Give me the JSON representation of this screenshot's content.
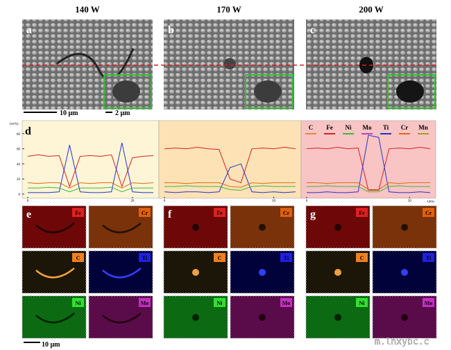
{
  "panel_titles": [
    "140 W",
    "170 W",
    "200 W"
  ],
  "sem_labels": [
    "a",
    "b",
    "c"
  ],
  "scale_bars": [
    "10 μm",
    "2 μm"
  ],
  "chart_data": {
    "type": "line",
    "label": "d",
    "y_label": "(wt%)",
    "x_label": "(nm)",
    "ylim": [
      0,
      90
    ],
    "yticks": [
      0,
      20,
      40,
      60,
      80
    ],
    "legend": [
      {
        "name": "C",
        "color": "#e08a3a"
      },
      {
        "name": "Fe",
        "color": "#d62020"
      },
      {
        "name": "Ni",
        "color": "#3cb83c"
      },
      {
        "name": "Mo",
        "color": "#c040c0"
      },
      {
        "name": "Ti",
        "color": "#2030d0"
      },
      {
        "name": "Cr",
        "color": "#e06a10"
      },
      {
        "name": "Mn",
        "color": "#a0a020"
      }
    ],
    "segments": [
      {
        "x": [
          0,
          2,
          4,
          6,
          8,
          10,
          12,
          14,
          16,
          18,
          20,
          22,
          24
        ],
        "xlim": [
          0,
          24
        ],
        "xticks": [
          0,
          20
        ],
        "series": [
          {
            "name": "Fe",
            "values": [
              50,
              52,
              50,
              51,
              10,
              50,
              51,
              50,
              52,
              10,
              48,
              50,
              51
            ]
          },
          {
            "name": "Ti",
            "values": [
              2,
              2,
              2,
              3,
              65,
              3,
              2,
              2,
              3,
              68,
              3,
              2,
              2
            ]
          },
          {
            "name": "Cr",
            "values": [
              15,
              14,
              15,
              15,
              8,
              15,
              14,
              15,
              15,
              8,
              15,
              14,
              15
            ]
          },
          {
            "name": "Ni",
            "values": [
              8,
              8,
              9,
              8,
              3,
              8,
              8,
              8,
              9,
              3,
              8,
              8,
              8
            ]
          }
        ]
      },
      {
        "x": [
          0,
          2,
          4,
          6,
          8,
          10,
          12,
          14,
          16,
          18,
          20,
          22,
          24
        ],
        "xlim": [
          0,
          24
        ],
        "xticks": [
          0,
          20
        ],
        "series": [
          {
            "name": "Fe",
            "values": [
              60,
              61,
              60,
              62,
              60,
              59,
              20,
              15,
              60,
              61,
              60,
              62,
              60
            ]
          },
          {
            "name": "Ti",
            "values": [
              3,
              2,
              3,
              3,
              2,
              3,
              35,
              40,
              3,
              2,
              3,
              2,
              3
            ]
          },
          {
            "name": "Cr",
            "values": [
              15,
              15,
              14,
              15,
              15,
              15,
              10,
              9,
              15,
              14,
              15,
              15,
              15
            ]
          },
          {
            "name": "Ni",
            "values": [
              10,
              10,
              11,
              10,
              10,
              10,
              6,
              5,
              10,
              11,
              10,
              10,
              10
            ]
          }
        ]
      },
      {
        "x": [
          0,
          2,
          4,
          6,
          8,
          10,
          12,
          14,
          16,
          18,
          20,
          22,
          24
        ],
        "xlim": [
          0,
          24
        ],
        "xticks": [
          0,
          20
        ],
        "series": [
          {
            "name": "Fe",
            "values": [
              60,
              61,
              60,
              62,
              60,
              61,
              5,
              5,
              60,
              61,
              60,
              62,
              60
            ]
          },
          {
            "name": "Ti",
            "values": [
              2,
              2,
              3,
              2,
              2,
              3,
              78,
              75,
              3,
              2,
              2,
              3,
              2
            ]
          },
          {
            "name": "Cr",
            "values": [
              15,
              15,
              14,
              15,
              15,
              15,
              6,
              6,
              15,
              14,
              15,
              15,
              15
            ]
          },
          {
            "name": "Ni",
            "values": [
              10,
              10,
              11,
              10,
              10,
              10,
              3,
              3,
              10,
              11,
              10,
              10,
              10
            ]
          }
        ]
      }
    ]
  },
  "maps": [
    {
      "label": "e",
      "elements": [
        "Fe",
        "Cr",
        "C",
        "Ti",
        "Ni",
        "Mo"
      ]
    },
    {
      "label": "f",
      "elements": [
        "Fe",
        "Cr",
        "C",
        "Ti",
        "Ni",
        "Mo"
      ]
    },
    {
      "label": "g",
      "elements": [
        "Fe",
        "Cr",
        "C",
        "Ti",
        "Ni",
        "Mo"
      ]
    }
  ],
  "map_scale_bar": "10 μm",
  "watermark": "m.lhxybc.c"
}
